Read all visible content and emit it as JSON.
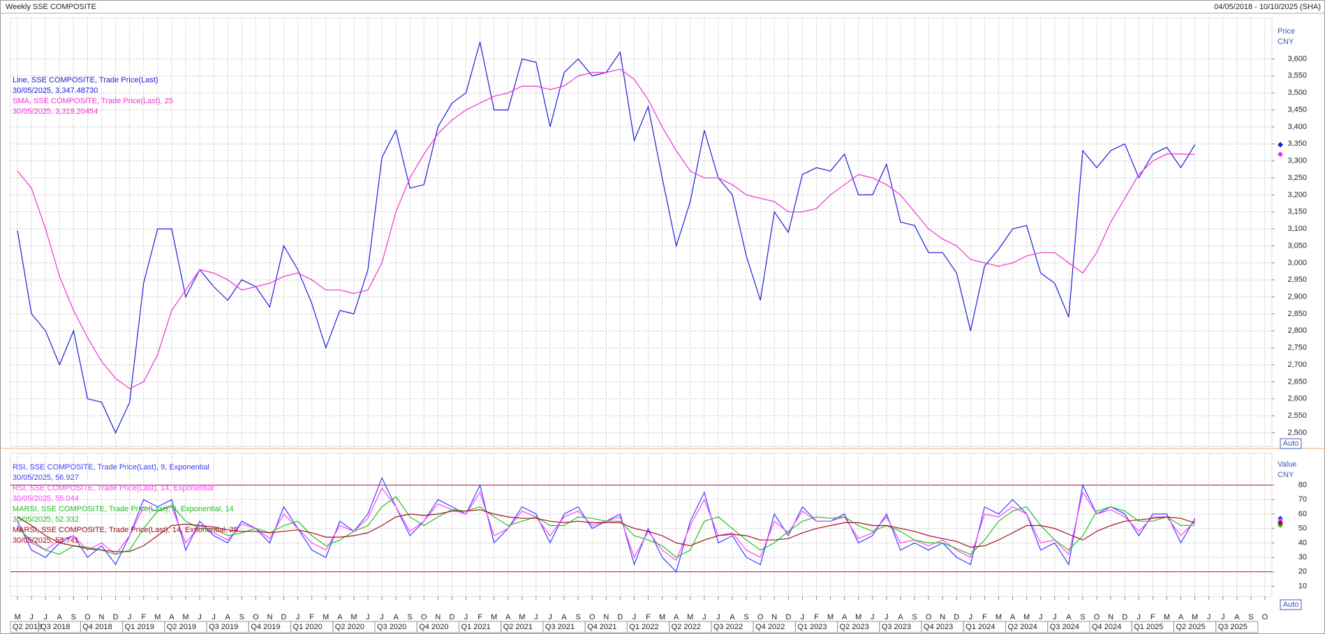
{
  "header": {
    "title": "Weekly SSE COMPOSITE",
    "range": "04/05/2018 - 10/10/2025 (SHA)"
  },
  "chart_data": [
    {
      "type": "line",
      "y_label": "Price",
      "y_unit": "CNY",
      "button": "Auto",
      "grid": true,
      "ylim": [
        2460,
        3720
      ],
      "yticks": [
        {
          "value": 2500,
          "label": "2,500"
        },
        {
          "value": 2550,
          "label": "2,550"
        },
        {
          "value": 2600,
          "label": "2,600"
        },
        {
          "value": 2650,
          "label": "2,650"
        },
        {
          "value": 2700,
          "label": "2,700"
        },
        {
          "value": 2750,
          "label": "2,750"
        },
        {
          "value": 2800,
          "label": "2,800"
        },
        {
          "value": 2850,
          "label": "2,850"
        },
        {
          "value": 2900,
          "label": "2,900"
        },
        {
          "value": 2950,
          "label": "2,950"
        },
        {
          "value": 3000,
          "label": "3,000"
        },
        {
          "value": 3050,
          "label": "3,050"
        },
        {
          "value": 3100,
          "label": "3,100"
        },
        {
          "value": 3150,
          "label": "3,150"
        },
        {
          "value": 3200,
          "label": "3,200"
        },
        {
          "value": 3250,
          "label": "3,250"
        },
        {
          "value": 3300,
          "label": "3,300"
        },
        {
          "value": 3350,
          "label": "3,350"
        },
        {
          "value": 3400,
          "label": "3,400"
        },
        {
          "value": 3450,
          "label": "3,450"
        },
        {
          "value": 3500,
          "label": "3,500"
        },
        {
          "value": 3550,
          "label": "3,550"
        },
        {
          "value": 3600,
          "label": "3,600"
        }
      ],
      "series": [
        {
          "name": "Line, SSE COMPOSITE, Trade Price(Last)",
          "legend_value": "30/05/2025, 3,347.48730",
          "color": "#1c1cdc",
          "values": [
            3095,
            2850,
            2800,
            2700,
            2800,
            2600,
            2590,
            2500,
            2590,
            2940,
            3100,
            3100,
            2900,
            2980,
            2930,
            2890,
            2950,
            2930,
            2870,
            3050,
            2980,
            2880,
            2750,
            2860,
            2850,
            2980,
            3310,
            3390,
            3220,
            3230,
            3400,
            3470,
            3500,
            3650,
            3450,
            3450,
            3600,
            3590,
            3400,
            3560,
            3600,
            3550,
            3560,
            3620,
            3360,
            3460,
            3250,
            3050,
            3180,
            3390,
            3250,
            3200,
            3020,
            2890,
            3150,
            3090,
            3260,
            3280,
            3270,
            3320,
            3200,
            3200,
            3290,
            3120,
            3110,
            3030,
            3030,
            2970,
            2800,
            2990,
            3040,
            3100,
            3110,
            2970,
            2940,
            2840,
            3330,
            3280,
            3330,
            3350,
            3250,
            3320,
            3340,
            3280,
            3347.4873,
            null,
            null,
            null,
            null,
            null
          ]
        },
        {
          "name": "SMA, SSE COMPOSITE, Trade Price(Last),  25",
          "legend_value": "30/05/2025, 3,319.20454",
          "color": "#f030d0",
          "values": [
            3270,
            3220,
            3100,
            2960,
            2860,
            2780,
            2710,
            2660,
            2630,
            2650,
            2730,
            2860,
            2920,
            2980,
            2970,
            2950,
            2920,
            2930,
            2940,
            2960,
            2970,
            2950,
            2920,
            2920,
            2910,
            2920,
            3000,
            3150,
            3250,
            3320,
            3380,
            3420,
            3450,
            3470,
            3490,
            3500,
            3520,
            3520,
            3510,
            3520,
            3550,
            3560,
            3560,
            3570,
            3540,
            3480,
            3400,
            3330,
            3270,
            3250,
            3250,
            3230,
            3200,
            3190,
            3180,
            3150,
            3150,
            3160,
            3200,
            3230,
            3260,
            3250,
            3230,
            3200,
            3150,
            3100,
            3070,
            3050,
            3010,
            3000,
            2990,
            3000,
            3020,
            3030,
            3030,
            3000,
            2970,
            3030,
            3120,
            3190,
            3260,
            3300,
            3320,
            3320,
            3319.20454,
            null,
            null,
            null,
            null,
            null
          ]
        }
      ]
    },
    {
      "type": "line",
      "y_label": "Value",
      "y_unit": "CNY",
      "button": "Auto",
      "grid": true,
      "ylim": [
        3,
        102
      ],
      "yticks": [
        10,
        20,
        30,
        40,
        50,
        60,
        70,
        80
      ],
      "hlines": [
        80,
        20
      ],
      "hline_color": "#b0103c",
      "categories": [
        "M",
        "J",
        "J",
        "A",
        "S",
        "O",
        "N",
        "D",
        "J",
        "F",
        "M",
        "A",
        "M",
        "J",
        "J",
        "A",
        "S",
        "O",
        "N",
        "D",
        "J",
        "F",
        "M",
        "A",
        "M",
        "J",
        "J",
        "A",
        "S",
        "O",
        "N",
        "D",
        "J",
        "F",
        "M",
        "A",
        "M",
        "J",
        "J",
        "A",
        "S",
        "O",
        "N",
        "D",
        "J",
        "F",
        "M",
        "A",
        "M",
        "J",
        "J",
        "A",
        "S",
        "O",
        "N",
        "D",
        "J",
        "F",
        "M",
        "A",
        "M",
        "J",
        "J",
        "A",
        "S",
        "O",
        "N",
        "D",
        "J",
        "F",
        "M",
        "A",
        "M",
        "J",
        "J",
        "A",
        "S",
        "O",
        "N",
        "D",
        "J",
        "F",
        "M",
        "A",
        "M",
        "J",
        "J",
        "A",
        "S",
        "O"
      ],
      "quarters": [
        "Q2 2018",
        "Q3 2018",
        "Q4 2018",
        "Q1 2019",
        "Q2 2019",
        "Q3 2019",
        "Q4 2019",
        "Q1 2020",
        "Q2 2020",
        "Q3 2020",
        "Q4 2020",
        "Q1 2021",
        "Q2 2021",
        "Q3 2021",
        "Q4 2021",
        "Q1 2022",
        "Q2 2022",
        "Q3 2022",
        "Q4 2022",
        "Q1 2023",
        "Q2 2023",
        "Q3 2023",
        "Q4 2023",
        "Q1 2024",
        "Q2 2024",
        "Q3 2024",
        "Q4 2024",
        "Q1 2025",
        "Q2 2025",
        "Q3 2025"
      ],
      "series": [
        {
          "name": "RSI, SSE COMPOSITE, Trade Price(Last),  9, Exponential",
          "legend_value": "30/05/2025, 56.927",
          "color": "#3c3cff",
          "values": [
            55,
            35,
            30,
            40,
            45,
            30,
            38,
            25,
            45,
            70,
            65,
            70,
            35,
            55,
            45,
            40,
            55,
            50,
            40,
            65,
            50,
            35,
            30,
            55,
            48,
            60,
            85,
            65,
            45,
            55,
            70,
            65,
            60,
            80,
            40,
            50,
            65,
            60,
            40,
            60,
            65,
            50,
            55,
            60,
            25,
            50,
            30,
            20,
            55,
            75,
            40,
            45,
            30,
            25,
            60,
            45,
            65,
            55,
            55,
            60,
            40,
            45,
            60,
            35,
            40,
            35,
            40,
            30,
            25,
            65,
            60,
            70,
            60,
            35,
            40,
            25,
            80,
            60,
            65,
            60,
            45,
            60,
            60,
            40,
            56.927,
            null,
            null,
            null,
            null,
            null
          ]
        },
        {
          "name": "RSI, SSE COMPOSITE, Trade Price(Last),  14, Exponential",
          "legend_value": "30/05/2025, 55.044",
          "color": "#ff40ff",
          "values": [
            52,
            40,
            35,
            42,
            45,
            35,
            40,
            32,
            45,
            65,
            62,
            65,
            40,
            52,
            47,
            42,
            53,
            50,
            43,
            60,
            50,
            40,
            35,
            52,
            48,
            57,
            78,
            65,
            48,
            55,
            67,
            63,
            60,
            75,
            45,
            50,
            62,
            58,
            45,
            58,
            62,
            52,
            55,
            58,
            30,
            48,
            35,
            28,
            52,
            70,
            45,
            47,
            35,
            30,
            55,
            47,
            62,
            55,
            55,
            58,
            43,
            47,
            58,
            40,
            42,
            38,
            42,
            35,
            30,
            60,
            58,
            65,
            60,
            40,
            42,
            32,
            75,
            60,
            63,
            58,
            48,
            58,
            58,
            45,
            55.044,
            null,
            null,
            null,
            null,
            null
          ]
        },
        {
          "name": "MARSI, SSE COMPOSITE, Trade Price(Last),  9, Exponential, 14",
          "legend_value": "30/05/2025, 52.332",
          "color": "#20c020",
          "values": [
            50,
            42,
            35,
            32,
            38,
            37,
            35,
            32,
            35,
            50,
            62,
            66,
            55,
            50,
            50,
            45,
            47,
            50,
            47,
            52,
            55,
            45,
            38,
            42,
            48,
            52,
            65,
            72,
            58,
            52,
            58,
            63,
            62,
            65,
            58,
            52,
            55,
            58,
            52,
            52,
            58,
            57,
            55,
            55,
            45,
            42,
            38,
            30,
            35,
            55,
            58,
            50,
            42,
            35,
            40,
            48,
            55,
            58,
            57,
            58,
            52,
            48,
            52,
            48,
            42,
            40,
            40,
            36,
            32,
            42,
            55,
            62,
            65,
            52,
            42,
            35,
            45,
            62,
            65,
            62,
            55,
            55,
            58,
            52,
            52.332,
            null,
            null,
            null,
            null,
            null
          ]
        },
        {
          "name": "MARSI, SSE COMPOSITE, Trade Price(Last),  14, Exponential, 25",
          "legend_value": "30/05/2025, 53.741",
          "color": "#a01020",
          "values": [
            58,
            52,
            45,
            40,
            38,
            36,
            35,
            34,
            34,
            38,
            45,
            52,
            53,
            52,
            51,
            49,
            48,
            48,
            47,
            48,
            49,
            47,
            44,
            44,
            45,
            47,
            52,
            58,
            60,
            59,
            60,
            62,
            62,
            63,
            60,
            58,
            57,
            57,
            55,
            54,
            55,
            54,
            54,
            54,
            50,
            48,
            45,
            40,
            38,
            42,
            45,
            46,
            45,
            42,
            42,
            43,
            47,
            50,
            52,
            54,
            54,
            52,
            52,
            50,
            48,
            45,
            43,
            41,
            37,
            38,
            42,
            47,
            52,
            52,
            50,
            46,
            42,
            48,
            52,
            55,
            56,
            57,
            58,
            57,
            53.741,
            null,
            null,
            null,
            null,
            null
          ]
        }
      ]
    }
  ]
}
